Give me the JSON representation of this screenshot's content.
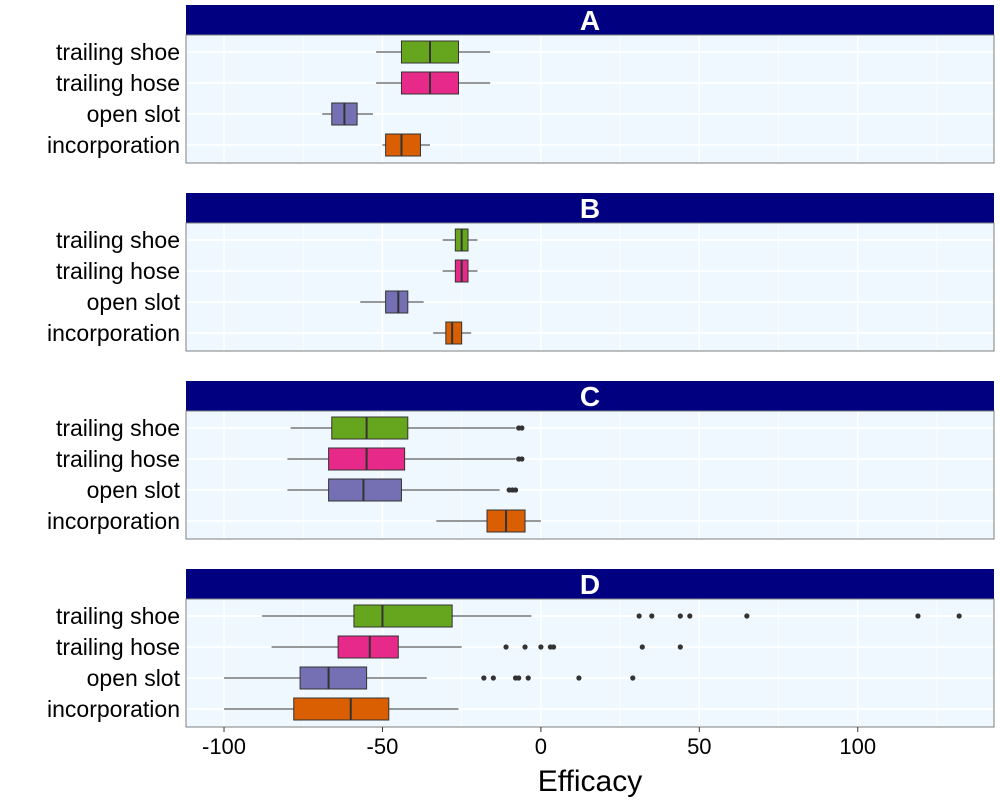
{
  "chart_data": {
    "type": "boxplot",
    "xlabel": "Efficacy",
    "xlim": [
      -112,
      143
    ],
    "x_ticks": [
      -100,
      -50,
      0,
      50,
      100
    ],
    "x_tick_labels": [
      "-100",
      "-50",
      "0",
      "50",
      "100"
    ],
    "categories": [
      "trailing shoe",
      "trailing hose",
      "open slot",
      "incorporation"
    ],
    "grid": true,
    "facet_layout": "stacked-vertical",
    "colors": {
      "trailing shoe": "#66a61e",
      "trailing hose": "#e7298a",
      "open slot": "#7570b3",
      "incorporation": "#d95f02",
      "strip_background": "#000080",
      "panel_background": "#f0f8ff"
    },
    "panels": [
      {
        "label": "A",
        "boxes": [
          {
            "category": "trailing shoe",
            "whisker_low": -52,
            "q1": -44,
            "median": -35,
            "q3": -26,
            "whisker_high": -16,
            "outliers": []
          },
          {
            "category": "trailing hose",
            "whisker_low": -52,
            "q1": -44,
            "median": -35,
            "q3": -26,
            "whisker_high": -16,
            "outliers": []
          },
          {
            "category": "open slot",
            "whisker_low": -69,
            "q1": -66,
            "median": -62,
            "q3": -58,
            "whisker_high": -53,
            "outliers": []
          },
          {
            "category": "incorporation",
            "whisker_low": -50,
            "q1": -49,
            "median": -44,
            "q3": -38,
            "whisker_high": -35,
            "outliers": []
          }
        ]
      },
      {
        "label": "B",
        "boxes": [
          {
            "category": "trailing shoe",
            "whisker_low": -31,
            "q1": -27,
            "median": -25,
            "q3": -23,
            "whisker_high": -20,
            "outliers": []
          },
          {
            "category": "trailing hose",
            "whisker_low": -31,
            "q1": -27,
            "median": -25,
            "q3": -23,
            "whisker_high": -20,
            "outliers": []
          },
          {
            "category": "open slot",
            "whisker_low": -57,
            "q1": -49,
            "median": -45,
            "q3": -42,
            "whisker_high": -37,
            "outliers": []
          },
          {
            "category": "incorporation",
            "whisker_low": -34,
            "q1": -30,
            "median": -28,
            "q3": -25,
            "whisker_high": -22,
            "outliers": []
          }
        ]
      },
      {
        "label": "C",
        "boxes": [
          {
            "category": "trailing shoe",
            "whisker_low": -79,
            "q1": -66,
            "median": -55,
            "q3": -42,
            "whisker_high": -8,
            "outliers": [
              -7,
              -6
            ]
          },
          {
            "category": "trailing hose",
            "whisker_low": -80,
            "q1": -67,
            "median": -55,
            "q3": -43,
            "whisker_high": -8,
            "outliers": [
              -7,
              -6
            ]
          },
          {
            "category": "open slot",
            "whisker_low": -80,
            "q1": -67,
            "median": -56,
            "q3": -44,
            "whisker_high": -13,
            "outliers": [
              -10,
              -9,
              -8
            ]
          },
          {
            "category": "incorporation",
            "whisker_low": -33,
            "q1": -17,
            "median": -11,
            "q3": -5,
            "whisker_high": 0,
            "outliers": []
          }
        ]
      },
      {
        "label": "D",
        "boxes": [
          {
            "category": "trailing shoe",
            "whisker_low": -88,
            "q1": -59,
            "median": -50,
            "q3": -28,
            "whisker_high": -3,
            "outliers": [
              31,
              35,
              44,
              47,
              65,
              119,
              132
            ]
          },
          {
            "category": "trailing hose",
            "whisker_low": -85,
            "q1": -64,
            "median": -54,
            "q3": -45,
            "whisker_high": -25,
            "outliers": [
              -11,
              -5,
              0,
              3,
              4,
              32,
              44
            ]
          },
          {
            "category": "open slot",
            "whisker_low": -100,
            "q1": -76,
            "median": -67,
            "q3": -55,
            "whisker_high": -36,
            "outliers": [
              -18,
              -15,
              -8,
              -7,
              -4,
              12,
              29
            ]
          },
          {
            "category": "incorporation",
            "whisker_low": -100,
            "q1": -78,
            "median": -60,
            "q3": -48,
            "whisker_high": -26,
            "outliers": []
          }
        ]
      }
    ]
  }
}
